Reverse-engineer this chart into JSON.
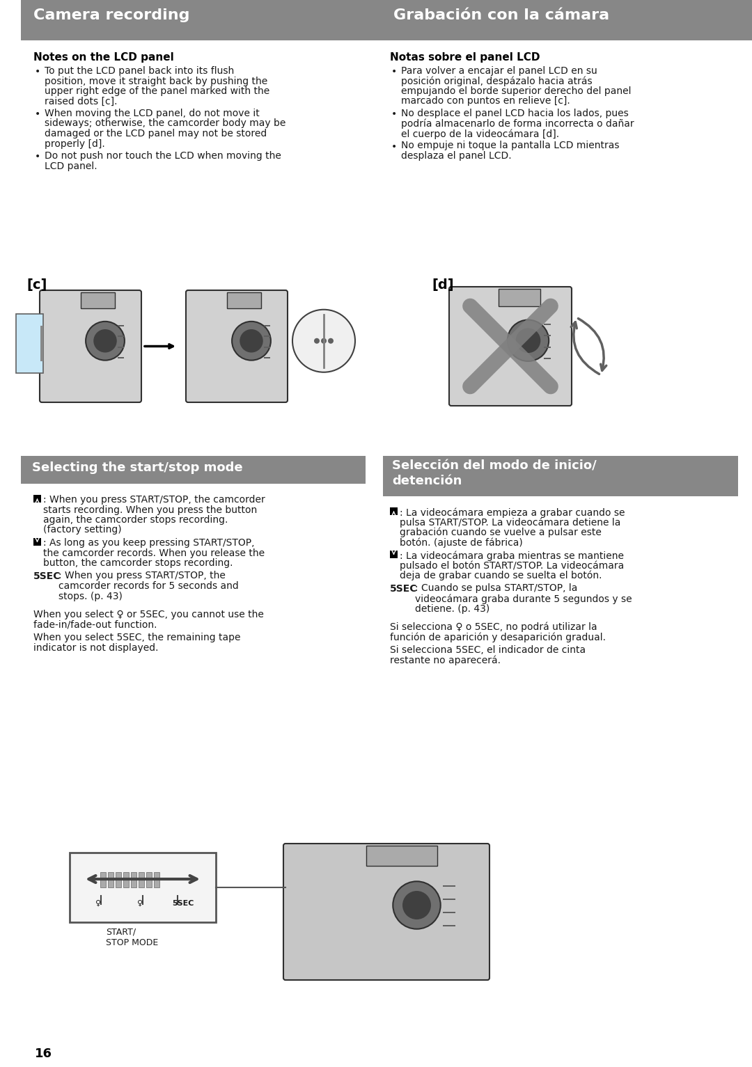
{
  "page_bg": "#ffffff",
  "header_bg": "#878787",
  "header_text_color": "#ffffff",
  "section_bg": "#878787",
  "section_text_color": "#ffffff",
  "body_text_color": "#1a1a1a",
  "bold_text_color": "#000000",
  "header_left": "Camera recording",
  "header_right": "Grabación con la cámara",
  "section_left": "Selecting the start/stop mode",
  "section_right": "Selección del modo de inicio/\ndetención",
  "notes_en_title": "Notes on the LCD panel",
  "notes_es_title": "Notas sobre el panel LCD",
  "notes_en_1": "To put the LCD panel back into its flush position, move it straight back by pushing the upper right edge of the panel marked with the raised dots [c].",
  "notes_en_2": "When moving the LCD panel, do not move it sideways; otherwise, the camcorder body may be damaged or the LCD panel may not be stored properly [d].",
  "notes_en_3": "Do not push nor touch the LCD when moving the LCD panel.",
  "notes_es_1": "Para volver a encajar el panel LCD en su posición original, despázalo hacia atrás empujando el borde superior derecho del panel marcado con puntos en relieve [c].",
  "notes_es_2": "No desplace el panel LCD hacia los lados, pues podría almacenarlo de forma incorrecta o dañar el cuerpo de la videocámara [d].",
  "notes_es_3": "No empuje ni toque la pantalla LCD mientras desplaza el panel LCD.",
  "label_c": "[c]",
  "label_d": "[d]",
  "mode_icon1_en": ": When you press START/STOP, the camcorder starts recording.  When you press the button again, the camcorder stops recording. (factory setting)",
  "mode_icon2_en": ": As long as you keep pressing START/STOP, the camcorder records.  When you release the button, the camcorder stops recording.",
  "mode_5sec_en": ": When you press START/STOP, the camcorder records for 5 seconds and stops. (p. 43)",
  "mode_extra1_en": "When you select ♀ or 5SEC, you cannot use the fade-in/fade-out function.",
  "mode_extra2_en": "When you select 5SEC, the remaining tape indicator is not displayed.",
  "mode_icon1_es": ": La videocámara empieza a grabar cuando se pulsa START/STOP. La videocámara detiene la grabación cuando se vuelve a pulsar este botón. (ajuste de fábrica)",
  "mode_icon2_es": ": La videocámara graba mientras se mantiene pulsado el botón START/STOP. La videocámara deja de grabar cuando se suelta el botón.",
  "mode_5sec_es": ": Cuando se pulsa START/STOP, la videocámara graba durante 5 segundos y se detiene. (p. 43)",
  "mode_extra1_es": "Si selecciona ♀ o 5SEC, no podrá utilizar la función de aparición y desaparición gradual.",
  "mode_extra2_es": "Si selecciona 5SEC, el indicador de cinta restante no aparecerá.",
  "page_number": "16",
  "sw_label": "START/\nSTOP MODE",
  "sw_5sec": "5SEC"
}
